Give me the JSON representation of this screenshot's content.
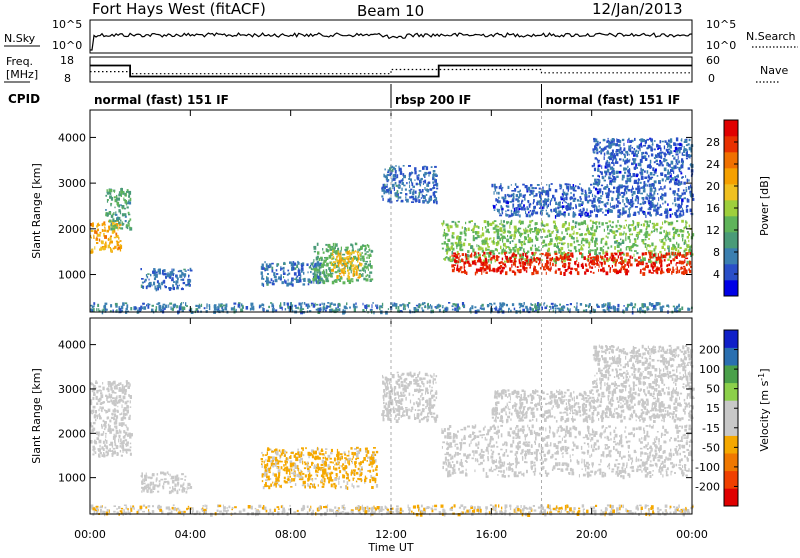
{
  "header": {
    "station": "Fort Hays West (fitACF)",
    "beam": "Beam 10",
    "date": "12/Jan/2013"
  },
  "strip_panels": {
    "noise": {
      "left_label": "N.Sky",
      "left_ticks": [
        "10^5",
        "10^0"
      ],
      "right_ticks": [
        "10^5",
        "10^0"
      ],
      "right_label": "N.Search"
    },
    "freq_nave": {
      "left_label_1": "Freq.",
      "left_label_2": "[MHz]",
      "left_ticks": [
        "18",
        "8"
      ],
      "right_ticks": [
        "60",
        "0"
      ],
      "right_label": "Nave"
    },
    "cpid": {
      "label": "CPID",
      "segments": [
        {
          "text": "normal (fast) 151 IF",
          "start_h": 0,
          "end_h": 12
        },
        {
          "text": "rbsp 200 IF",
          "start_h": 12,
          "end_h": 18
        },
        {
          "text": "normal (fast) 151 IF",
          "start_h": 18,
          "end_h": 24
        }
      ]
    }
  },
  "chart_data": [
    {
      "type": "line",
      "name": "frequency",
      "x_hours": [
        0,
        1.6,
        1.6,
        11.85,
        11.85,
        13.9,
        13.9,
        24
      ],
      "y": [
        14.6,
        14.6,
        10.2,
        10.2,
        10.2,
        10.2,
        14.6,
        14.6
      ],
      "ylim": [
        8,
        18
      ]
    },
    {
      "type": "line",
      "name": "nave",
      "x_hours": [
        0,
        1.6,
        1.6,
        12,
        12,
        18,
        18,
        24
      ],
      "y": [
        25,
        25,
        20,
        20,
        30,
        30,
        22,
        22
      ],
      "ylim": [
        0,
        60
      ]
    },
    {
      "type": "heatmap",
      "panel": "power",
      "ylabel": "Slant Range [km]",
      "yticks": [
        1000,
        2000,
        3000,
        4000
      ],
      "ylim": [
        180,
        4600
      ],
      "xlim_hours": [
        0,
        24
      ],
      "colorbar": {
        "label": "Power [dB]",
        "ticks": [
          "4",
          "8",
          "12",
          "16",
          "20",
          "24",
          "28"
        ],
        "range": [
          0,
          30
        ]
      },
      "regions": [
        {
          "t0": 0,
          "t1": 1.2,
          "r0": 1500,
          "r1": 2200,
          "v": 20
        },
        {
          "t0": 0.6,
          "t1": 1.6,
          "r0": 2000,
          "r1": 2900,
          "v": 10
        },
        {
          "t0": 2.0,
          "t1": 4.0,
          "r0": 700,
          "r1": 1150,
          "v": 6
        },
        {
          "t0": 6.8,
          "t1": 9.2,
          "r0": 800,
          "r1": 1300,
          "v": 6
        },
        {
          "t0": 8.8,
          "t1": 11.2,
          "r0": 850,
          "r1": 1700,
          "v": 11
        },
        {
          "t0": 9.6,
          "t1": 10.8,
          "r0": 950,
          "r1": 1550,
          "v": 19
        },
        {
          "t0": 11.6,
          "t1": 13.8,
          "r0": 2600,
          "r1": 3400,
          "v": 6
        },
        {
          "t0": 14.0,
          "t1": 24,
          "r0": 1300,
          "r1": 2200,
          "v": 13
        },
        {
          "t0": 14.4,
          "t1": 24,
          "r0": 1050,
          "r1": 1500,
          "v": 27
        },
        {
          "t0": 16.0,
          "t1": 24,
          "r0": 2300,
          "r1": 3000,
          "v": 5
        },
        {
          "t0": 20.0,
          "t1": 24,
          "r0": 3000,
          "r1": 4000,
          "v": 5
        },
        {
          "t0": 0,
          "t1": 24,
          "r0": 200,
          "r1": 400,
          "v": 7
        }
      ]
    },
    {
      "type": "heatmap",
      "panel": "velocity",
      "ylabel": "Slant Range [km]",
      "yticks": [
        1000,
        2000,
        3000,
        4000
      ],
      "ylim": [
        180,
        4600
      ],
      "xlim_hours": [
        0,
        24
      ],
      "xlabel": "Time UT",
      "xticks": [
        "00:00",
        "04:00",
        "08:00",
        "12:00",
        "16:00",
        "20:00",
        "00:00"
      ],
      "colorbar": {
        "label": "Velocity [m s^-1]",
        "ticks": [
          "200",
          "100",
          "50",
          "15",
          "-15",
          "-50",
          "-100",
          "-200"
        ],
        "range": [
          -250,
          250
        ]
      },
      "regions": [
        {
          "t0": 0,
          "t1": 1.6,
          "r0": 1500,
          "r1": 3200,
          "v": 0
        },
        {
          "t0": 2.0,
          "t1": 4.0,
          "r0": 700,
          "r1": 1150,
          "v": 0
        },
        {
          "t0": 6.8,
          "t1": 11.4,
          "r0": 800,
          "r1": 1700,
          "v": -60
        },
        {
          "t0": 11.6,
          "t1": 13.8,
          "r0": 2300,
          "r1": 3400,
          "v": 0
        },
        {
          "t0": 14.0,
          "t1": 24,
          "r0": 1050,
          "r1": 2200,
          "v": 0
        },
        {
          "t0": 16.0,
          "t1": 24,
          "r0": 2300,
          "r1": 3000,
          "v": 30
        },
        {
          "t0": 20.0,
          "t1": 24,
          "r0": 3000,
          "r1": 4000,
          "v": -30
        },
        {
          "t0": 0,
          "t1": 24,
          "r0": 200,
          "r1": 400,
          "v": -40
        }
      ]
    }
  ]
}
